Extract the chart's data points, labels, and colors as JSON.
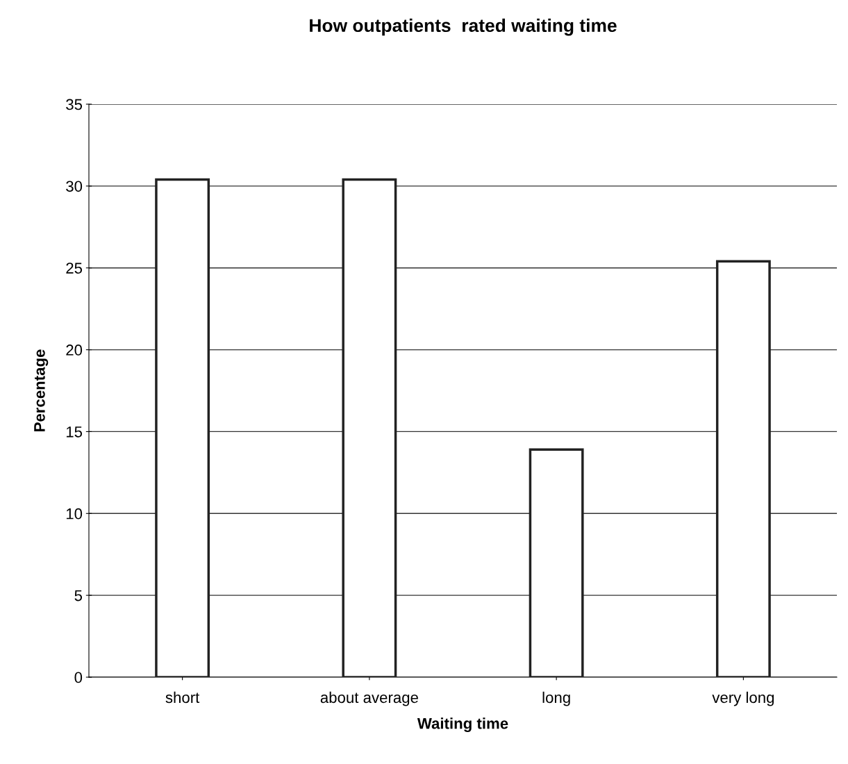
{
  "chart_data": {
    "type": "bar",
    "title": "How outpatients  rated waiting time",
    "xlabel": "Waiting time",
    "ylabel": "Percentage",
    "categories": [
      "short",
      "about average",
      "long",
      "very long"
    ],
    "values": [
      30.4,
      30.4,
      13.9,
      25.4
    ],
    "color": "#ffffff",
    "ylim": [
      0,
      35
    ],
    "yticks": [
      0,
      5,
      10,
      15,
      20,
      25,
      30,
      35
    ],
    "grid": "y"
  }
}
